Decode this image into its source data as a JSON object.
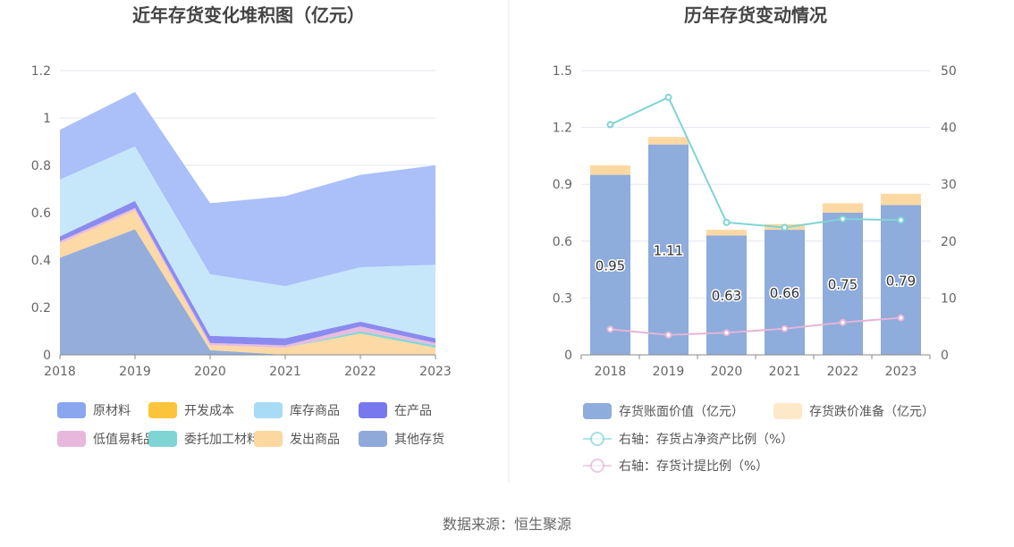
{
  "source_text": "数据来源：恒生聚源",
  "colors": {
    "grid": "#e3e6f3",
    "axis": "#888888",
    "divider": "#e8e8e8"
  },
  "chart_data": [
    {
      "type": "area",
      "title": "近年存货变化堆积图（亿元）",
      "x": [
        "2018",
        "2019",
        "2020",
        "2021",
        "2022",
        "2023"
      ],
      "ylim": [
        0,
        1.2
      ],
      "yticks": [
        "0",
        "0.2",
        "0.4",
        "0.6",
        "0.8",
        "1",
        "1.2"
      ],
      "stacked": true,
      "series": [
        {
          "name": "其他存货",
          "color": "#8fa9d9",
          "values": [
            0.41,
            0.53,
            0.02,
            0.0,
            0.0,
            0.0
          ]
        },
        {
          "name": "发出商品",
          "color": "#fcd7a0",
          "values": [
            0.06,
            0.08,
            0.02,
            0.03,
            0.09,
            0.03
          ]
        },
        {
          "name": "委托加工材料",
          "color": "#7fd4d4",
          "values": [
            0.0,
            0.0,
            0.0,
            0.0,
            0.01,
            0.01
          ]
        },
        {
          "name": "低值易耗品",
          "color": "#e8b8dc",
          "values": [
            0.01,
            0.01,
            0.01,
            0.01,
            0.02,
            0.01
          ]
        },
        {
          "name": "在产品",
          "color": "#8585ee",
          "values": [
            0.02,
            0.03,
            0.03,
            0.03,
            0.02,
            0.02
          ]
        },
        {
          "name": "开发成本",
          "color": "#fcc43a",
          "values": [
            0,
            0,
            0,
            0,
            0,
            0
          ]
        },
        {
          "name": "库存商品",
          "color": "#c3e6f9",
          "values": [
            0.24,
            0.23,
            0.26,
            0.22,
            0.23,
            0.31
          ]
        },
        {
          "name": "原材料",
          "color": "#a7bcf9",
          "values": [
            0.21,
            0.23,
            0.3,
            0.38,
            0.39,
            0.42
          ]
        }
      ],
      "legend": [
        {
          "name": "原材料",
          "color": "#8aa6ef"
        },
        {
          "name": "开发成本",
          "color": "#fcc43a"
        },
        {
          "name": "库存商品",
          "color": "#a8dcf6"
        },
        {
          "name": "在产品",
          "color": "#7878ee"
        },
        {
          "name": "低值易耗品",
          "color": "#e8b8dc"
        },
        {
          "name": "委托加工材料",
          "color": "#7fd4d4"
        },
        {
          "name": "发出商品",
          "color": "#fcd7a0"
        },
        {
          "name": "其他存货",
          "color": "#8fa9d9"
        }
      ]
    },
    {
      "type": "bar",
      "title": "历年存货变动情况",
      "x": [
        "2018",
        "2019",
        "2020",
        "2021",
        "2022",
        "2023"
      ],
      "ylim": [
        0,
        1.5
      ],
      "yticks": [
        "0",
        "0.3",
        "0.6",
        "0.9",
        "1.2",
        "1.5"
      ],
      "y2lim": [
        0,
        50
      ],
      "y2ticks": [
        "0",
        "10",
        "20",
        "30",
        "40",
        "50"
      ],
      "stacked": true,
      "series": [
        {
          "name": "存货账面价值（亿元）",
          "type": "bar",
          "color": "#8eacdc",
          "values": [
            0.95,
            1.11,
            0.63,
            0.66,
            0.75,
            0.79
          ],
          "labels": [
            "0.95",
            "1.11",
            "0.63",
            "0.66",
            "0.75",
            "0.79"
          ]
        },
        {
          "name": "存货跌价准备（亿元）",
          "type": "bar",
          "color": "#fcd9a3",
          "legend_color": "#fde8c8",
          "values": [
            0.05,
            0.04,
            0.03,
            0.03,
            0.05,
            0.06
          ]
        },
        {
          "name": "右轴：存货占净资产比例（%）",
          "type": "line",
          "axis": "right",
          "color": "#7fd4d4",
          "values": [
            40.5,
            45.3,
            23.3,
            22.4,
            23.9,
            23.7
          ]
        },
        {
          "name": "右轴：存货计提比例（%）",
          "type": "line",
          "axis": "right",
          "color": "#e3b5d8",
          "values": [
            4.5,
            3.5,
            3.9,
            4.6,
            5.7,
            6.5
          ]
        }
      ]
    }
  ]
}
